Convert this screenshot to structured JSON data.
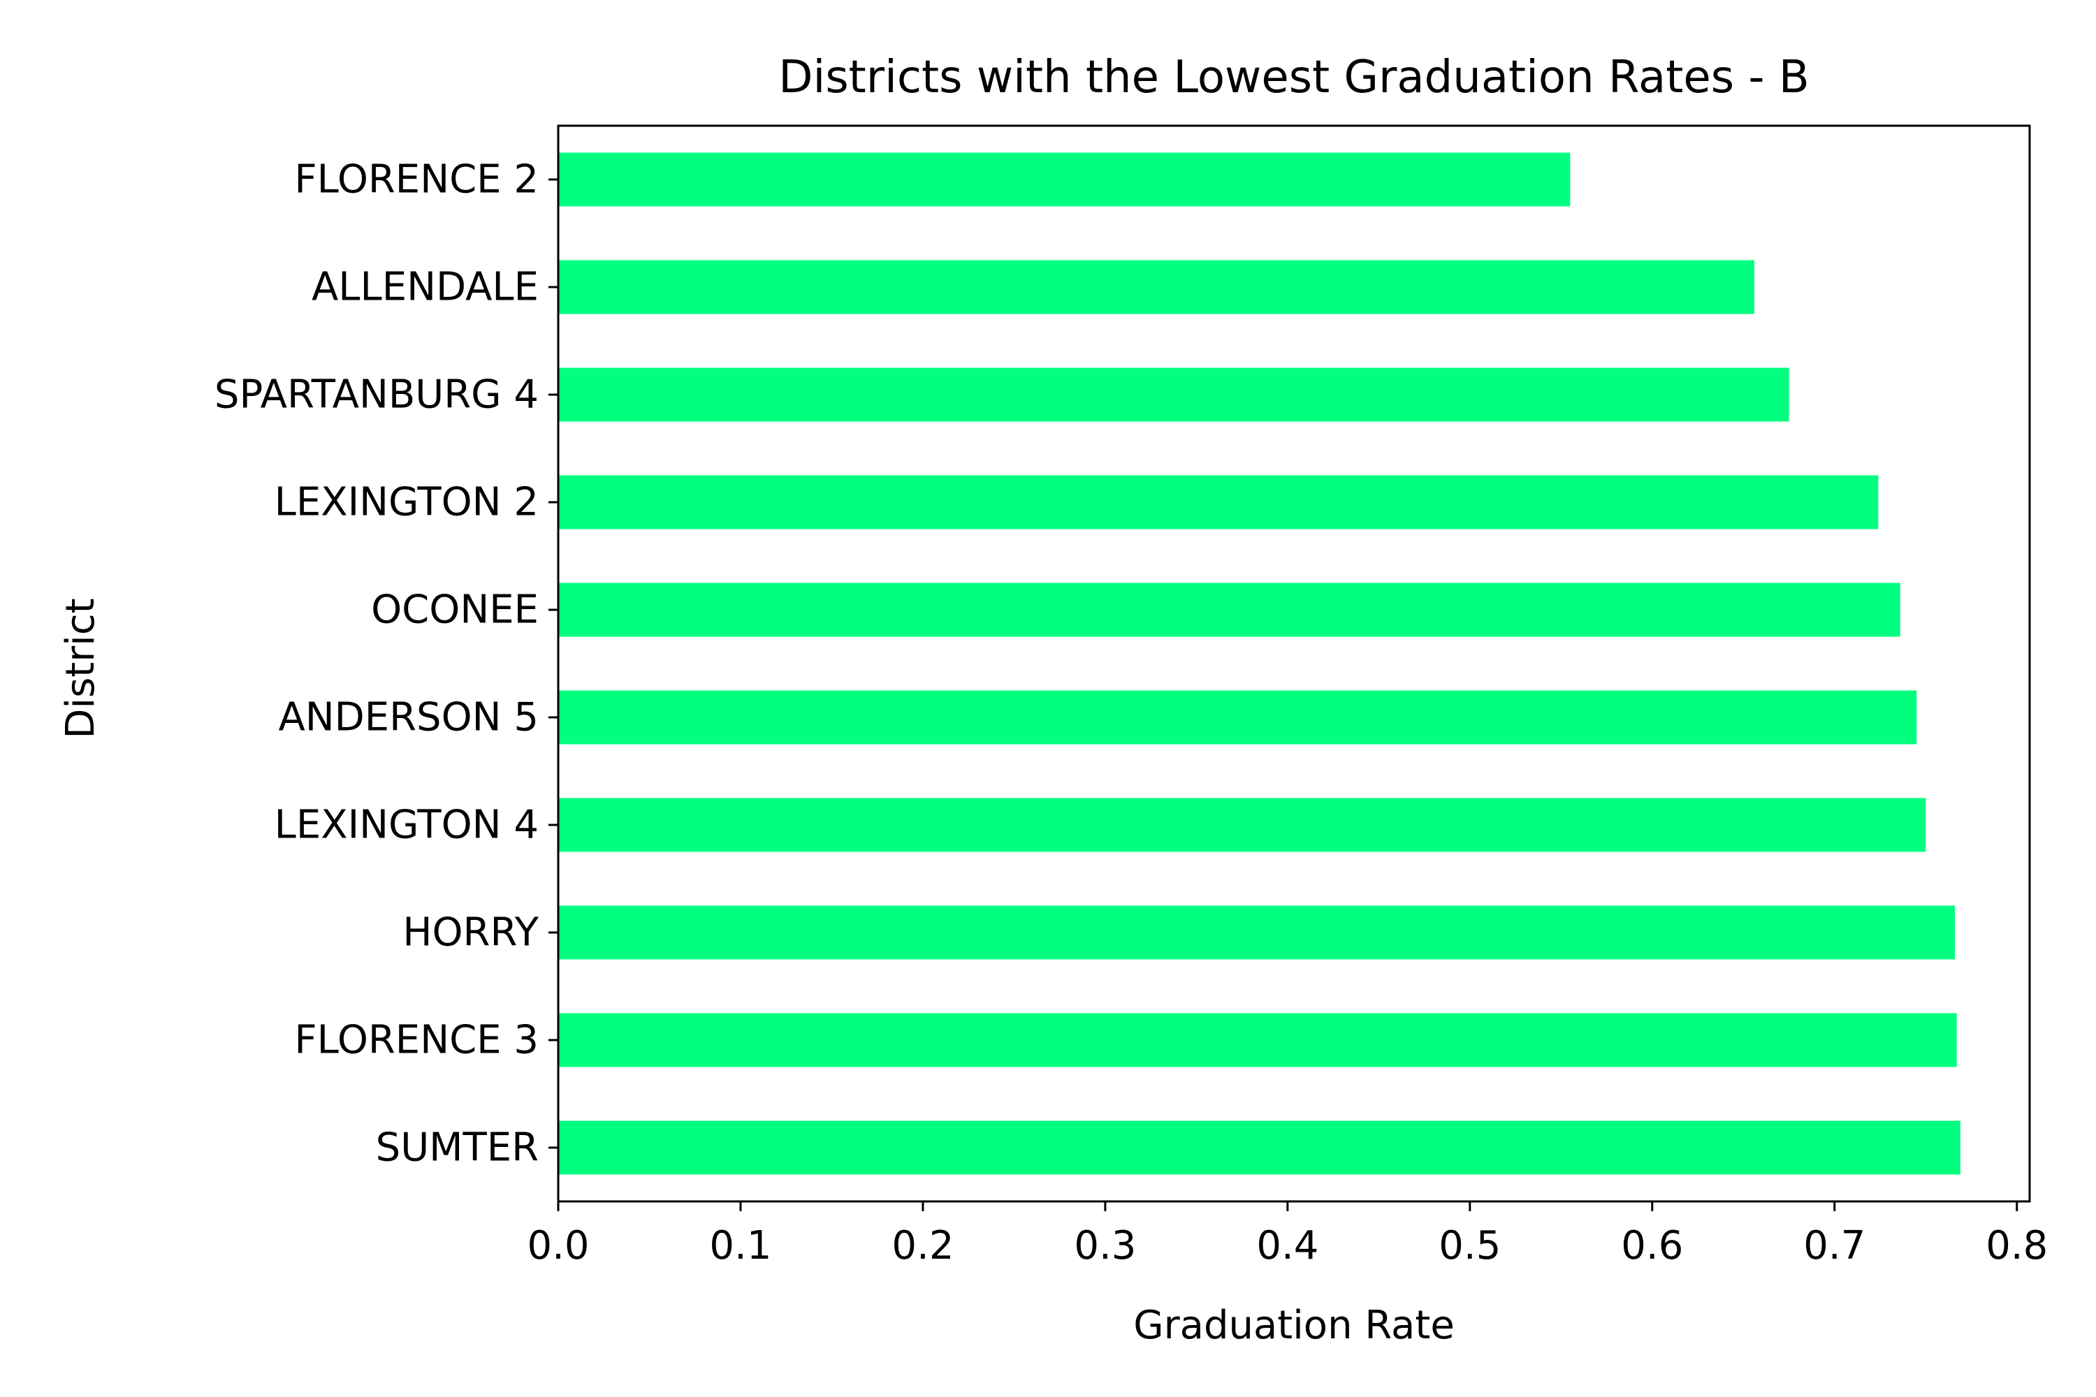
{
  "chart_data": {
    "type": "bar",
    "orientation": "horizontal",
    "title": "Districts with the Lowest Graduation Rates - B",
    "xlabel": "Graduation Rate",
    "ylabel": "District",
    "categories": [
      "FLORENCE 2",
      "ALLENDALE",
      "SPARTANBURG 4",
      "LEXINGTON 2",
      "OCONEE",
      "ANDERSON 5",
      "LEXINGTON 4",
      "HORRY",
      "FLORENCE 3",
      "SUMTER"
    ],
    "values": [
      0.555,
      0.656,
      0.675,
      0.724,
      0.736,
      0.745,
      0.75,
      0.766,
      0.767,
      0.769
    ],
    "xlim": [
      0,
      0.807
    ],
    "xticks": [
      "0.0",
      "0.1",
      "0.2",
      "0.3",
      "0.4",
      "0.5",
      "0.6",
      "0.7",
      "0.8"
    ],
    "xtick_values": [
      0,
      0.1,
      0.2,
      0.3,
      0.4,
      0.5,
      0.6,
      0.7,
      0.8
    ],
    "grid": false,
    "bar_color": "#00ff7f"
  }
}
